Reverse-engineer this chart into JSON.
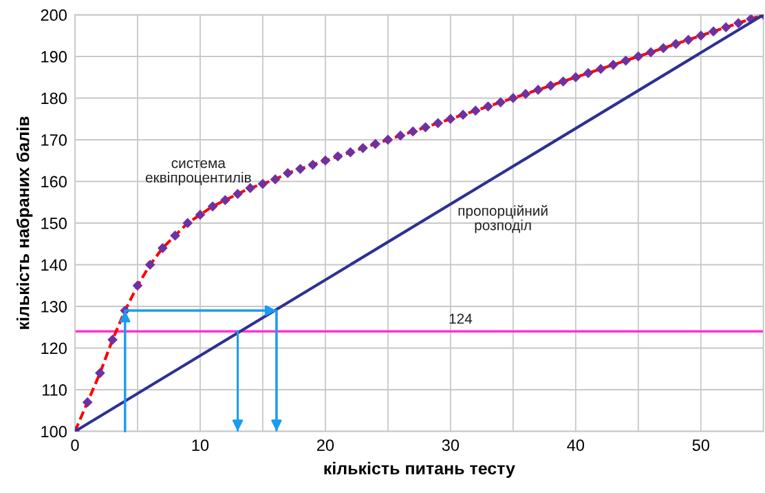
{
  "chart_data": {
    "type": "line",
    "xlabel": "кількість питань тесту",
    "ylabel": "кількість набраних балів",
    "xlim": [
      0,
      55
    ],
    "ylim": [
      100,
      200
    ],
    "xticks": [
      0,
      {
        "value": 5,
        "label": null
      },
      10,
      {
        "value": 15,
        "label": null
      },
      20,
      {
        "value": 25,
        "label": null
      },
      30,
      {
        "value": 35,
        "label": null
      },
      40,
      {
        "value": 45,
        "label": null
      },
      50,
      {
        "value": 55,
        "label": null
      }
    ],
    "yticks": [
      100,
      110,
      120,
      130,
      140,
      150,
      160,
      170,
      180,
      190,
      200
    ],
    "grid": true,
    "series": [
      {
        "name": "система еквіпроцентилів",
        "color": "#ff0000",
        "line_style": "dashed",
        "marker": "none",
        "x": [
          0,
          1,
          2,
          3,
          4,
          5,
          6,
          7,
          8,
          9,
          10,
          11,
          12,
          13,
          14,
          15,
          16,
          17,
          18,
          19,
          20,
          21,
          22,
          23,
          24,
          25,
          26,
          27,
          28,
          29,
          30,
          31,
          32,
          33,
          34,
          35,
          36,
          37,
          38,
          39,
          40,
          41,
          42,
          43,
          44,
          45,
          46,
          47,
          48,
          49,
          50,
          51,
          52,
          53,
          54,
          55
        ],
        "values": [
          100,
          107,
          114,
          122,
          129,
          135,
          140,
          144,
          147,
          150,
          152,
          154,
          155.5,
          157,
          158.4,
          159.4,
          160.5,
          162,
          163,
          164,
          165,
          166,
          167,
          168,
          169,
          170,
          171,
          172,
          173,
          174,
          175,
          176,
          177,
          178,
          179,
          180,
          181,
          182,
          183,
          184,
          185,
          186,
          187,
          188,
          189,
          190,
          191,
          192,
          193,
          194,
          195,
          196,
          197,
          198,
          199,
          200
        ]
      },
      {
        "type": "scatter",
        "color": "#7030a0",
        "marker": "diamond",
        "x": [
          0,
          1,
          2,
          3,
          4,
          5,
          6,
          7,
          8,
          9,
          10,
          11,
          12,
          13,
          14,
          15,
          16,
          17,
          18,
          19,
          20,
          21,
          22,
          23,
          24,
          25,
          26,
          27,
          28,
          29,
          30,
          31,
          32,
          33,
          34,
          35,
          36,
          37,
          38,
          39,
          40,
          41,
          42,
          43,
          44,
          45,
          46,
          47,
          48,
          49,
          50,
          51,
          52,
          53,
          54,
          55
        ],
        "values": [
          100,
          107,
          114,
          122,
          129,
          135,
          140,
          144,
          147,
          150,
          152,
          154,
          155.5,
          157,
          158.4,
          159.4,
          160.5,
          162,
          163,
          164,
          165,
          166,
          167,
          168,
          169,
          170,
          171,
          172,
          173,
          174,
          175,
          176,
          177,
          178,
          179,
          180,
          181,
          182,
          183,
          184,
          185,
          186,
          187,
          188,
          189,
          190,
          191,
          192,
          193,
          194,
          195,
          196,
          197,
          198,
          199,
          200
        ]
      },
      {
        "name": "пропорційний розподіл",
        "color": "#2e3192",
        "line_style": "solid",
        "marker": "none",
        "x": [
          0,
          55
        ],
        "values": [
          100,
          200
        ]
      },
      {
        "color": "#1a9cf0",
        "line_style": "solid",
        "marker": "none",
        "x": [
          4,
          4,
          16.1,
          16.1
        ],
        "values": [
          100,
          129,
          129,
          100
        ]
      },
      {
        "color": "#1a9cf0",
        "line_style": "solid",
        "marker": "none",
        "x": [
          13,
          13
        ],
        "values": [
          124,
          100
        ]
      }
    ],
    "ref_lines": [
      {
        "axis": "y",
        "value": 124,
        "label": "124",
        "color": "#ff33cc"
      }
    ]
  }
}
